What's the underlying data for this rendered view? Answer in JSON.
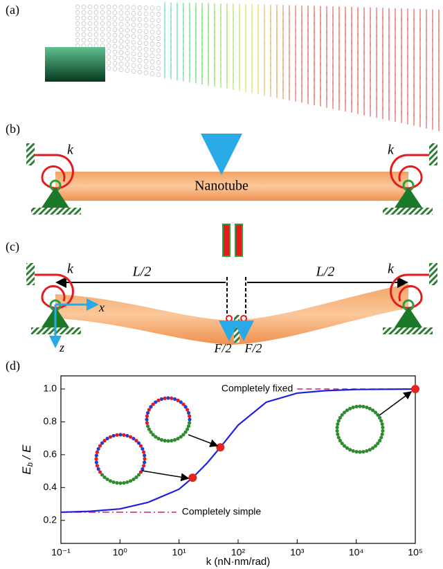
{
  "panels": {
    "a": {
      "label": "(a)"
    },
    "b": {
      "label": "(b)",
      "spring_left": "k",
      "spring_right": "k",
      "beam": "Nanotube"
    },
    "c": {
      "label": "(c)",
      "spring_left": "k",
      "spring_right": "k",
      "half_left": "L/2",
      "half_right": "L/2",
      "axis_x": "x",
      "axis_z": "z",
      "force_left": "F/2",
      "force_right": "F/2"
    },
    "d": {
      "label": "(d)"
    }
  },
  "chart_data": {
    "type": "line",
    "xlabel": "k (nN·nm/rad)",
    "ylabel_main": "E",
    "ylabel_sub": "b",
    "ylabel_rest": " / E",
    "log_x": true,
    "xlim": [
      0.1,
      100000
    ],
    "xticks": [
      {
        "value": 0.1,
        "label": "10⁻¹"
      },
      {
        "value": 1,
        "label": "10⁰"
      },
      {
        "value": 10,
        "label": "10¹"
      },
      {
        "value": 100,
        "label": "10²"
      },
      {
        "value": 1000,
        "label": "10³"
      },
      {
        "value": 10000,
        "label": "10⁴"
      },
      {
        "value": 100000,
        "label": "10⁵"
      }
    ],
    "ylim": [
      0.06,
      1.08
    ],
    "yticks": [
      {
        "value": 0.2,
        "label": "0.2"
      },
      {
        "value": 0.4,
        "label": "0.4"
      },
      {
        "value": 0.6,
        "label": "0.6"
      },
      {
        "value": 0.8,
        "label": "0.8"
      },
      {
        "value": 1.0,
        "label": "1.0"
      }
    ],
    "series": [
      {
        "color": "#1f1fe0",
        "x": [
          0.1,
          0.3,
          1,
          3,
          10,
          17,
          30,
          50,
          100,
          300,
          1000,
          3000,
          10000,
          100000
        ],
        "values": [
          0.25,
          0.255,
          0.27,
          0.31,
          0.39,
          0.46,
          0.55,
          0.645,
          0.78,
          0.92,
          0.975,
          0.99,
          0.997,
          1.0
        ]
      }
    ],
    "points": {
      "color": "#e8221c",
      "x": [
        17,
        50,
        100000
      ],
      "values": [
        0.46,
        0.645,
        1.0
      ]
    },
    "ref_lines": [
      {
        "label": "Completely fixed",
        "y": 1.0,
        "x": [
          1000,
          100000
        ],
        "color": "#e0288c",
        "style": "dash"
      },
      {
        "label": "Completely simple",
        "y": 0.25,
        "x": [
          0.1,
          9
        ],
        "color": "#e0288c",
        "style": "dashdot"
      }
    ]
  }
}
